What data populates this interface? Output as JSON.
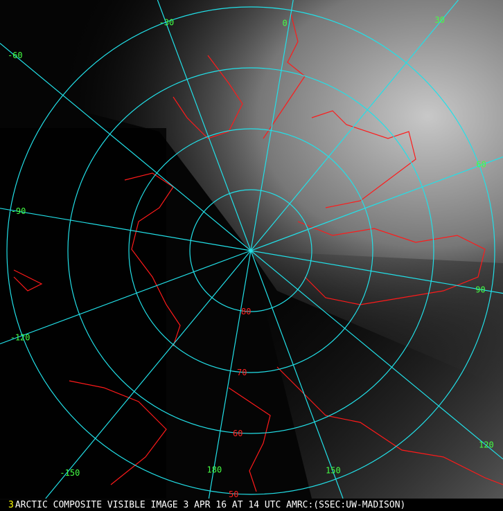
{
  "caption": {
    "frame_number": "3",
    "text": "ARCTIC COMPOSITE VISIBLE IMAGE 3 APR 16 AT 14 UTC AMRC:(SSEC:UW-MADISON)"
  },
  "colors": {
    "grid": "#22e0e8",
    "coastline": "#ff1a1a",
    "longitude_labels": "#44ff44",
    "latitude_labels": "#ff2222"
  },
  "longitudes": [
    {
      "value": 0,
      "label": "0"
    },
    {
      "value": 30,
      "label": "30"
    },
    {
      "value": 60,
      "label": "60"
    },
    {
      "value": 90,
      "label": "90"
    },
    {
      "value": 120,
      "label": "120"
    },
    {
      "value": 150,
      "label": "150"
    },
    {
      "value": 180,
      "label": "180"
    },
    {
      "value": -150,
      "label": "-150"
    },
    {
      "value": -120,
      "label": "-120"
    },
    {
      "value": -90,
      "label": "-90"
    },
    {
      "value": -60,
      "label": "-60"
    },
    {
      "value": -30,
      "label": "-30"
    }
  ],
  "latitudes": [
    {
      "value": 80,
      "label": "80"
    },
    {
      "value": 70,
      "label": "70"
    },
    {
      "value": 60,
      "label": "60"
    },
    {
      "value": 50,
      "label": "50"
    }
  ]
}
